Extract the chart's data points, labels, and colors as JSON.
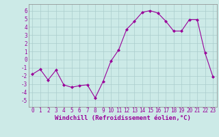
{
  "x": [
    0,
    1,
    2,
    3,
    4,
    5,
    6,
    7,
    8,
    9,
    10,
    11,
    12,
    13,
    14,
    15,
    16,
    17,
    18,
    19,
    20,
    21,
    22,
    23
  ],
  "y": [
    -1.8,
    -1.2,
    -2.5,
    -1.3,
    -3.1,
    -3.4,
    -3.2,
    -3.1,
    -4.7,
    -2.7,
    -0.2,
    1.2,
    3.7,
    4.7,
    5.8,
    6.0,
    5.7,
    4.7,
    3.5,
    3.5,
    4.9,
    4.9,
    0.8,
    -2.1
  ],
  "line_color": "#990099",
  "marker": "D",
  "marker_size": 2,
  "bg_color": "#cceae7",
  "grid_color": "#aacccc",
  "xlabel": "Windchill (Refroidissement éolien,°C)",
  "xlabel_fontsize": 6.5,
  "xtick_labels": [
    "0",
    "1",
    "2",
    "3",
    "4",
    "5",
    "6",
    "7",
    "8",
    "9",
    "10",
    "11",
    "12",
    "13",
    "14",
    "15",
    "16",
    "17",
    "18",
    "19",
    "20",
    "21",
    "22",
    "23"
  ],
  "ytick_vals": [
    -5,
    -4,
    -3,
    -2,
    -1,
    0,
    1,
    2,
    3,
    4,
    5,
    6
  ],
  "ylim": [
    -5.8,
    6.8
  ],
  "xlim": [
    -0.5,
    23.5
  ],
  "tick_fontsize": 5.5
}
